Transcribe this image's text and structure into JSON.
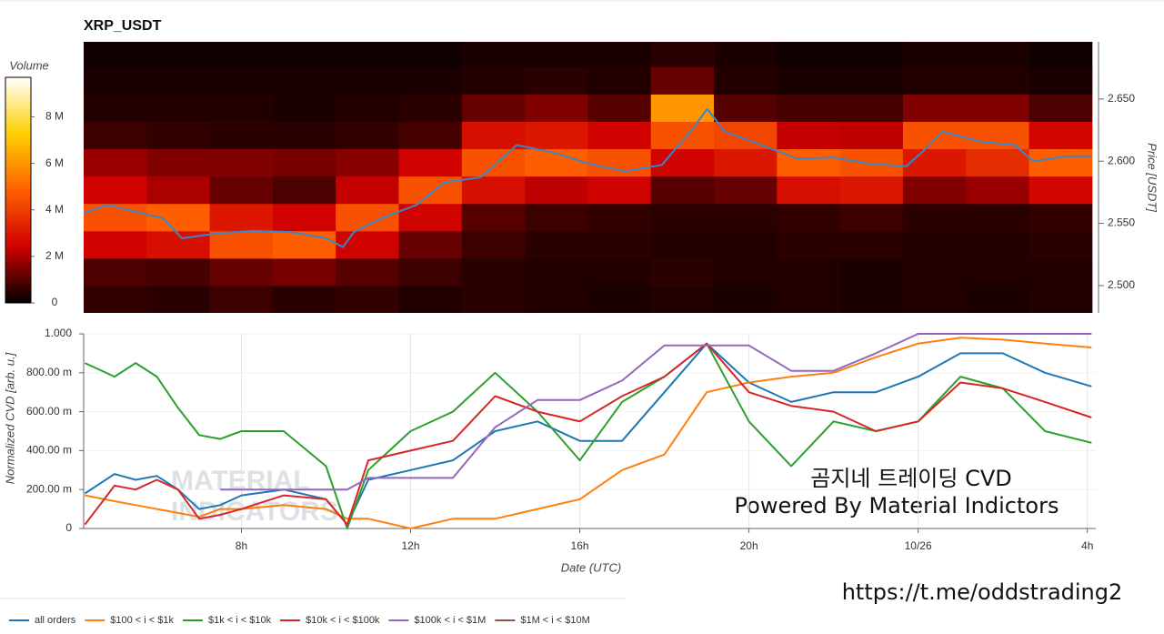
{
  "chart_data": [
    {
      "type": "heatmap",
      "title": "XRP_USDT",
      "y_label": "Price [USDT]",
      "xlim": [
        4.27,
        28.2
      ],
      "ylim": [
        2.478,
        2.696
      ],
      "yticks": [
        {
          "value": 2.5,
          "label": "2.500"
        },
        {
          "value": 2.55,
          "label": "2.550"
        },
        {
          "value": 2.6,
          "label": "2.600"
        },
        {
          "value": 2.65,
          "label": "2.650"
        }
      ],
      "x_edges": [
        4.27,
        5.76,
        7.25,
        8.74,
        10.23,
        11.72,
        13.21,
        14.7,
        16.19,
        17.68,
        19.17,
        20.66,
        22.15,
        23.64,
        25.13,
        26.62,
        28.11
      ],
      "y_edges": [
        2.478,
        2.5,
        2.522,
        2.544,
        2.566,
        2.588,
        2.61,
        2.632,
        2.654,
        2.676,
        2.698
      ],
      "z": [
        [
          600000,
          500000,
          700000,
          500000,
          600000,
          400000,
          500000,
          400000,
          300000,
          400000,
          300000,
          400000,
          300000,
          400000,
          300000,
          400000
        ],
        [
          900000,
          800000,
          1200000,
          1400000,
          1000000,
          700000,
          500000,
          400000,
          400000,
          500000,
          400000,
          400000,
          300000,
          400000,
          400000,
          400000
        ],
        [
          2500000,
          2800000,
          4500000,
          4800000,
          2500000,
          1200000,
          700000,
          500000,
          500000,
          400000,
          400000,
          500000,
          500000,
          400000,
          400000,
          500000
        ],
        [
          4500000,
          4800000,
          3000000,
          2500000,
          4500000,
          2500000,
          1000000,
          700000,
          600000,
          500000,
          500000,
          600000,
          700000,
          500000,
          500000,
          600000
        ],
        [
          2500000,
          2000000,
          1200000,
          900000,
          2300000,
          4500000,
          2800000,
          2200000,
          2500000,
          1000000,
          1200000,
          2800000,
          3000000,
          1500000,
          1800000,
          2600000
        ],
        [
          1800000,
          1500000,
          1500000,
          1400000,
          1600000,
          2500000,
          4500000,
          4800000,
          4500000,
          2500000,
          3000000,
          4800000,
          4500000,
          3000000,
          3500000,
          4800000
        ],
        [
          700000,
          600000,
          500000,
          500000,
          600000,
          800000,
          2800000,
          3000000,
          2500000,
          4500000,
          4200000,
          2300000,
          2200000,
          4500000,
          4500000,
          2600000
        ],
        [
          400000,
          400000,
          400000,
          300000,
          400000,
          500000,
          1200000,
          1500000,
          1000000,
          6000000,
          1000000,
          800000,
          800000,
          1500000,
          1500000,
          900000
        ],
        [
          300000,
          300000,
          300000,
          300000,
          300000,
          300000,
          400000,
          500000,
          400000,
          1200000,
          400000,
          300000,
          300000,
          400000,
          400000,
          300000
        ],
        [
          200000,
          200000,
          200000,
          200000,
          200000,
          200000,
          300000,
          300000,
          300000,
          500000,
          300000,
          200000,
          200000,
          300000,
          300000,
          200000
        ]
      ],
      "colorbar_label": "Volume",
      "zlim": [
        0,
        9700000
      ],
      "colorscale": [
        "#000000",
        "#d00000",
        "#ff6000",
        "#ffd000",
        "#ffffff"
      ],
      "zticks": [
        {
          "value": 0,
          "label": "0"
        },
        {
          "value": 2000000,
          "label": "2 M"
        },
        {
          "value": 4000000,
          "label": "4 M"
        },
        {
          "value": 6000000,
          "label": "6 M"
        },
        {
          "value": 8000000,
          "label": "8 M"
        }
      ],
      "price_line": {
        "color": "#3a87c8",
        "x": [
          4.27,
          4.83,
          5.41,
          6.16,
          6.59,
          7.44,
          8.3,
          9.16,
          10.01,
          10.4,
          10.66,
          11.3,
          12.15,
          12.8,
          13.65,
          14.51,
          15.37,
          16.22,
          17.08,
          17.94,
          18.69,
          19.01,
          19.43,
          20.29,
          21.15,
          22.0,
          22.86,
          23.72,
          24.15,
          24.57,
          25.43,
          26.29,
          26.72,
          27.57,
          28.1
        ],
        "values": [
          2.558,
          2.565,
          2.56,
          2.554,
          2.538,
          2.542,
          2.544,
          2.543,
          2.538,
          2.531,
          2.543,
          2.554,
          2.565,
          2.583,
          2.587,
          2.613,
          2.607,
          2.598,
          2.592,
          2.597,
          2.627,
          2.642,
          2.624,
          2.613,
          2.602,
          2.603,
          2.598,
          2.596,
          2.609,
          2.624,
          2.616,
          2.613,
          2.6,
          2.604,
          2.604
        ]
      }
    },
    {
      "type": "line",
      "x_label": "Date (UTC)",
      "y_label": "Normalized CVD [arb. u.]",
      "grid": true,
      "xlim": [
        4.27,
        28.2
      ],
      "ylim": [
        0,
        1
      ],
      "xticks": [
        {
          "value": 8,
          "label": "8h"
        },
        {
          "value": 12,
          "label": "12h"
        },
        {
          "value": 16,
          "label": "16h"
        },
        {
          "value": 20,
          "label": "20h"
        },
        {
          "value": 24,
          "label": "10/26"
        },
        {
          "value": 28,
          "label": "4h"
        }
      ],
      "yticks": [
        0,
        {
          "value": 0.2,
          "label": "200.00 m"
        },
        {
          "value": 0.4,
          "label": "400.00 m"
        },
        {
          "value": 0.6,
          "label": "600.00 m"
        },
        {
          "value": 0.8,
          "label": "800.00 m"
        },
        {
          "value": 1,
          "label": "1.000"
        }
      ],
      "x": [
        4.3,
        5,
        5.5,
        6,
        6.5,
        7,
        7.5,
        8,
        9,
        10,
        10.5,
        11,
        12,
        13,
        14,
        15,
        16,
        17,
        18,
        19,
        20,
        21,
        22,
        23,
        24,
        25,
        26,
        27,
        28.1
      ],
      "series": [
        {
          "name": "all orders",
          "color": "#1f77b4",
          "values": [
            0.18,
            0.28,
            0.25,
            0.27,
            0.2,
            0.1,
            0.12,
            0.17,
            0.2,
            0.15,
            0.02,
            0.25,
            0.3,
            0.35,
            0.5,
            0.55,
            0.45,
            0.45,
            0.7,
            0.95,
            0.75,
            0.65,
            0.7,
            0.7,
            0.78,
            0.9,
            0.9,
            0.8,
            0.73
          ]
        },
        {
          "name": "$100 < i < $1k",
          "color": "#ff7f0e",
          "values": [
            0.17,
            0.14,
            0.12,
            0.1,
            0.08,
            0.06,
            0.1,
            0.1,
            0.12,
            0.1,
            0.05,
            0.05,
            0.0,
            0.05,
            0.05,
            0.1,
            0.15,
            0.3,
            0.38,
            0.7,
            0.75,
            0.78,
            0.8,
            0.88,
            0.95,
            0.98,
            0.97,
            0.95,
            0.93
          ]
        },
        {
          "name": "$1k < i < $10k",
          "color": "#2ca02c",
          "values": [
            0.85,
            0.78,
            0.85,
            0.78,
            0.62,
            0.48,
            0.46,
            0.5,
            0.5,
            0.32,
            0.0,
            0.3,
            0.5,
            0.6,
            0.8,
            0.6,
            0.35,
            0.65,
            0.78,
            0.95,
            0.55,
            0.32,
            0.55,
            0.5,
            0.55,
            0.78,
            0.72,
            0.5,
            0.44
          ]
        },
        {
          "name": "$10k < i < $100k",
          "color": "#d62728",
          "values": [
            0.02,
            0.22,
            0.2,
            0.25,
            0.2,
            0.05,
            0.07,
            0.1,
            0.17,
            0.15,
            0.02,
            0.35,
            0.4,
            0.45,
            0.68,
            0.6,
            0.55,
            0.68,
            0.78,
            0.95,
            0.7,
            0.63,
            0.6,
            0.5,
            0.55,
            0.75,
            0.72,
            0.65,
            0.57
          ]
        },
        {
          "name": "$100k < i < $1M",
          "color": "#9467bd",
          "values": [
            null,
            null,
            null,
            null,
            null,
            null,
            0.2,
            0.2,
            0.2,
            0.2,
            0.2,
            0.26,
            0.26,
            0.26,
            0.52,
            0.66,
            0.66,
            0.76,
            0.94,
            0.94,
            0.94,
            0.81,
            0.81,
            0.9,
            1.0,
            1.0,
            1.0,
            1.0,
            1.0
          ]
        },
        {
          "name": "$1M < i < $10M",
          "color": "#8c564b",
          "values": [
            null,
            null,
            null,
            null,
            null,
            null,
            null,
            null,
            null,
            null,
            null,
            null,
            null,
            null,
            null,
            null,
            null,
            null,
            null,
            null,
            null,
            null,
            null,
            null,
            null,
            null,
            null,
            null,
            null
          ]
        }
      ],
      "annotations": [
        "곰지네 트레이딩 CVD",
        "Powered By Material Indictors"
      ],
      "watermark": [
        "MATERIAL",
        "INDICATORS"
      ]
    }
  ],
  "footer_link": "https://t.me/oddstrading2"
}
